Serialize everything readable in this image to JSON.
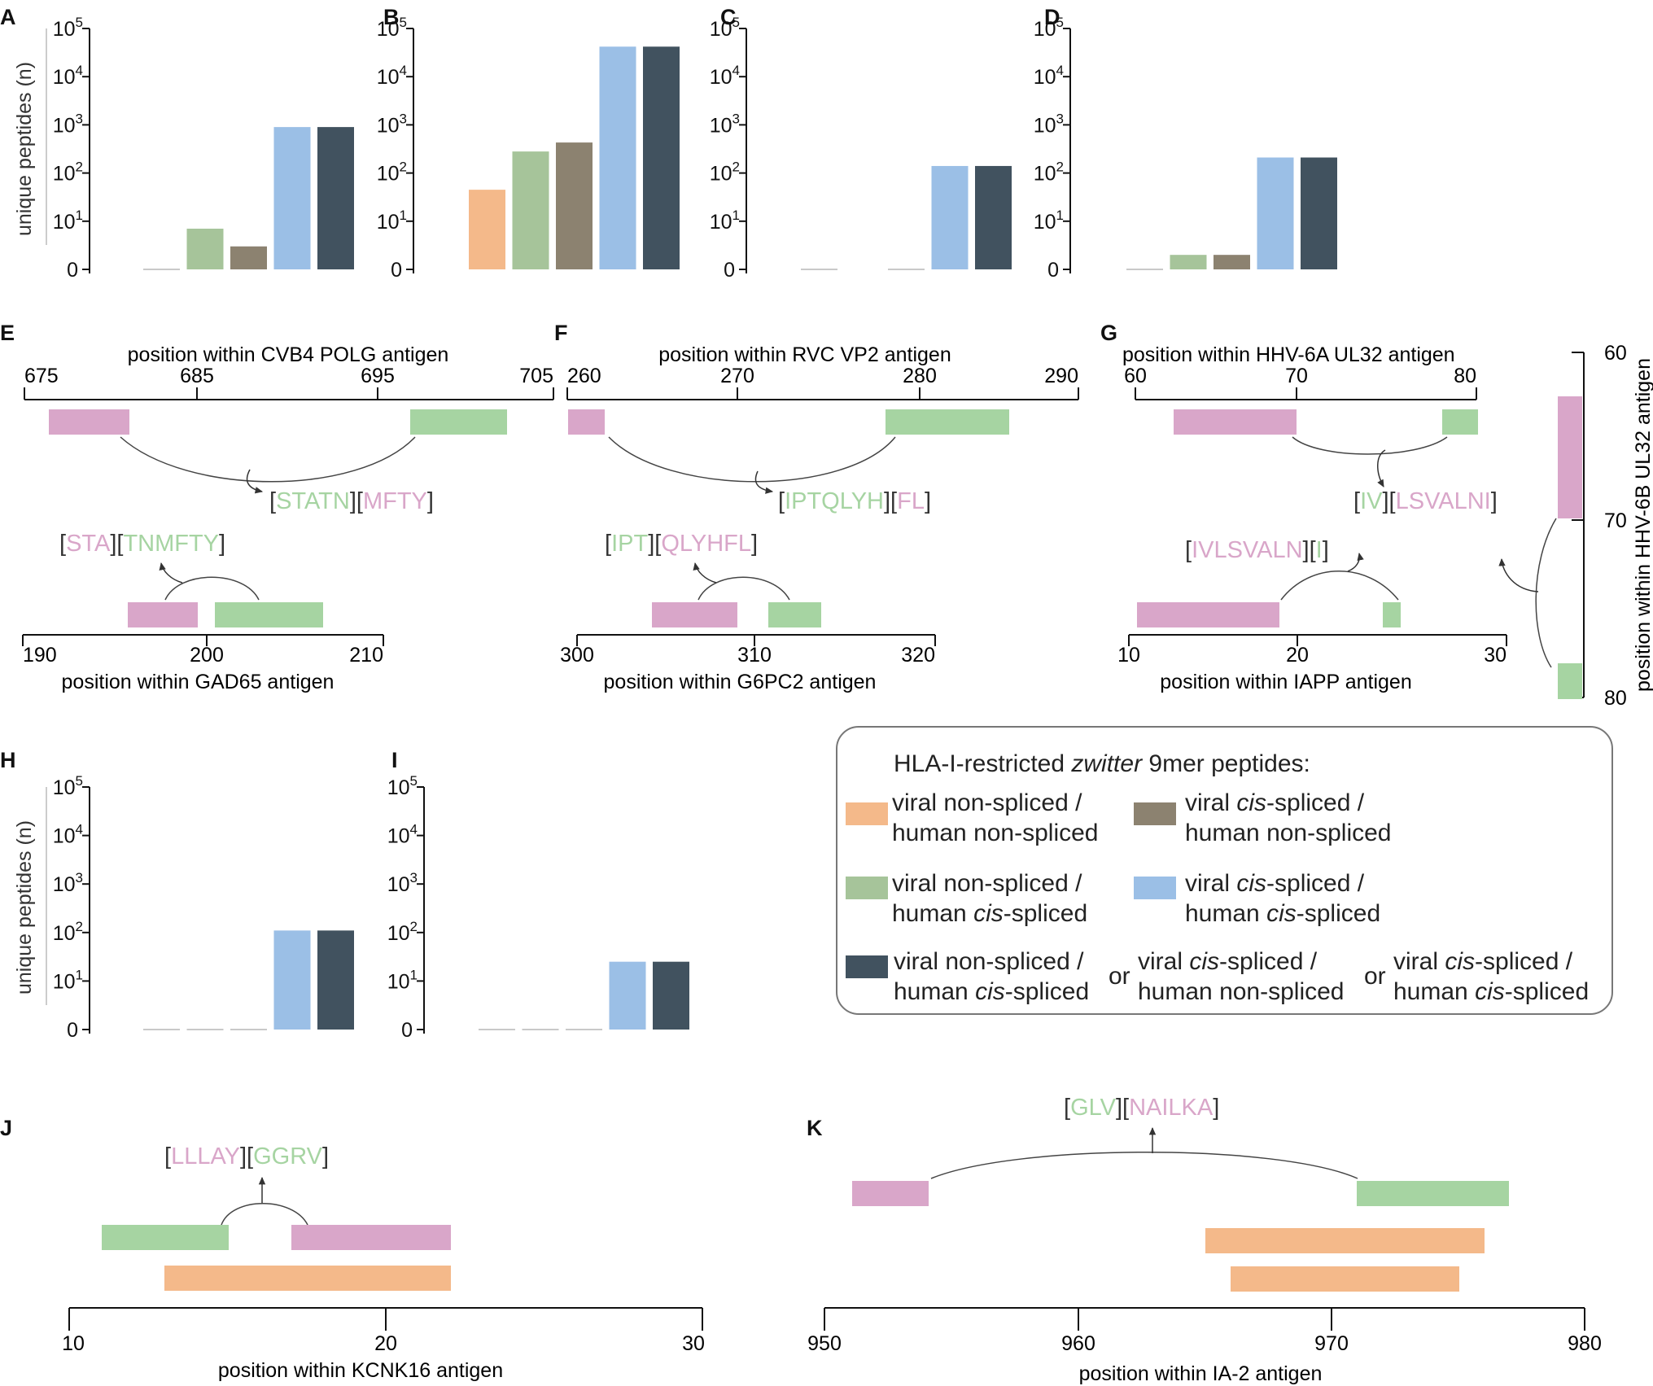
{
  "colors": {
    "viral_ns_human_ns": "#f4b98a",
    "viral_ns_human_cis": "#a6c49a",
    "viral_cis_human_ns": "#8c8270",
    "viral_cis_human_cis": "#9bbfe6",
    "any": "#41525f",
    "pink": "#d9a6c9",
    "green": "#a6d4a2",
    "orange": "#f4b98a"
  },
  "chart_data": [
    {
      "panel": "A",
      "type": "bar",
      "scale": "log",
      "ylabel": "unique peptides (n)",
      "ytick_labels": [
        "0",
        "10",
        "10",
        "10",
        "10",
        "10"
      ],
      "ytick_exps": [
        "",
        "1",
        "2",
        "3",
        "4",
        "5"
      ],
      "categories": [
        "viral non-spliced / human non-spliced",
        "viral non-spliced / human cis-spliced",
        "viral cis-spliced / human non-spliced",
        "viral cis-spliced / human cis-spliced",
        "any"
      ],
      "values": [
        0,
        7,
        3,
        900,
        900
      ]
    },
    {
      "panel": "B",
      "type": "bar",
      "scale": "log",
      "ylabel": "",
      "ytick_labels": [
        "0",
        "10",
        "10",
        "10",
        "10",
        "10"
      ],
      "ytick_exps": [
        "",
        "1",
        "2",
        "3",
        "4",
        "5"
      ],
      "categories": [
        "viral non-spliced / human non-spliced",
        "viral non-spliced / human cis-spliced",
        "viral cis-spliced / human non-spliced",
        "viral cis-spliced / human cis-spliced",
        "any"
      ],
      "values": [
        45,
        280,
        430,
        42000,
        42000
      ]
    },
    {
      "panel": "C",
      "type": "bar",
      "scale": "log",
      "ylabel": "",
      "ytick_labels": [
        "0",
        "10",
        "10",
        "10",
        "10",
        "10"
      ],
      "ytick_exps": [
        "",
        "1",
        "2",
        "3",
        "4",
        "5"
      ],
      "categories": [
        "viral non-spliced / human non-spliced",
        "viral non-spliced / human cis-spliced",
        "viral cis-spliced / human non-spliced",
        "viral cis-spliced / human cis-spliced",
        "any"
      ],
      "values": [
        0,
        1,
        0,
        140,
        140
      ]
    },
    {
      "panel": "D",
      "type": "bar",
      "scale": "log",
      "ylabel": "",
      "ytick_labels": [
        "0",
        "10",
        "10",
        "10",
        "10",
        "10"
      ],
      "ytick_exps": [
        "",
        "1",
        "2",
        "3",
        "4",
        "5"
      ],
      "categories": [
        "viral non-spliced / human non-spliced",
        "viral non-spliced / human cis-spliced",
        "viral cis-spliced / human non-spliced",
        "viral cis-spliced / human cis-spliced",
        "any"
      ],
      "values": [
        0,
        2,
        2,
        210,
        210
      ]
    },
    {
      "panel": "H",
      "type": "bar",
      "scale": "log",
      "ylabel": "unique peptides (n)",
      "ytick_labels": [
        "0",
        "10",
        "10",
        "10",
        "10",
        "10"
      ],
      "ytick_exps": [
        "",
        "1",
        "2",
        "3",
        "4",
        "5"
      ],
      "categories": [
        "viral non-spliced / human non-spliced",
        "viral non-spliced / human cis-spliced",
        "viral cis-spliced / human non-spliced",
        "viral cis-spliced / human cis-spliced",
        "any"
      ],
      "values": [
        0,
        0,
        0,
        110,
        110
      ]
    },
    {
      "panel": "I",
      "type": "bar",
      "scale": "log",
      "ylabel": "",
      "ytick_labels": [
        "0",
        "10",
        "10",
        "10",
        "10",
        "10"
      ],
      "ytick_exps": [
        "",
        "1",
        "2",
        "3",
        "4",
        "5"
      ],
      "categories": [
        "viral non-spliced / human non-spliced",
        "viral non-spliced / human cis-spliced",
        "viral cis-spliced / human non-spliced",
        "viral cis-spliced / human cis-spliced",
        "any"
      ],
      "values": [
        0,
        0,
        0,
        25,
        25
      ]
    }
  ],
  "panel_letters": [
    "A",
    "B",
    "C",
    "D",
    "E",
    "F",
    "G",
    "H",
    "I",
    "J",
    "K"
  ],
  "maps": {
    "E": {
      "top_title": "position within CVB4 POLG antigen",
      "top_ticks": [
        "675",
        "685",
        "695",
        "705"
      ],
      "bottom_title": "position within GAD65 antigen",
      "bottom_ticks": [
        "190",
        "200",
        "210"
      ],
      "pep_top": [
        "STATN",
        "MFTY"
      ],
      "pep_bottom": [
        "STA",
        "TNMFTY"
      ]
    },
    "F": {
      "top_title": "position within RVC VP2 antigen",
      "top_ticks": [
        "260",
        "270",
        "280",
        "290"
      ],
      "bottom_title": "position within G6PC2 antigen",
      "bottom_ticks": [
        "300",
        "310",
        "320"
      ],
      "pep_top": [
        "IPTQLYH",
        "FL"
      ],
      "pep_bottom": [
        "IPT",
        "QLYHFL"
      ]
    },
    "G": {
      "top_title": "position within HHV-6A UL32 antigen",
      "top_ticks": [
        "60",
        "70",
        "80"
      ],
      "bottom_title": "position within IAPP antigen",
      "bottom_ticks": [
        "10",
        "20",
        "30"
      ],
      "side_title": "position within HHV-6B UL32 antigen",
      "side_ticks": [
        "60",
        "70",
        "80"
      ],
      "pep_top": [
        "IV",
        "LSVALNI"
      ],
      "pep_bottom": [
        "IVLSVALN",
        "I"
      ]
    },
    "J": {
      "bottom_title": "position within KCNK16 antigen",
      "bottom_ticks": [
        "10",
        "20",
        "30"
      ],
      "pep": [
        "LLLAY",
        "GGRV"
      ]
    },
    "K": {
      "bottom_title": "position within IA-2 antigen",
      "bottom_ticks": [
        "950",
        "960",
        "970",
        "980"
      ],
      "pep": [
        "GLV",
        "NAILKA"
      ]
    }
  },
  "legend": {
    "title_pre": "HLA-I-restricted",
    "title_italic": "zwitter",
    "title_post": "9mer peptides:",
    "item1_l1": "viral non-spliced /",
    "item1_l2": "human non-spliced",
    "item2_l1a": "viral",
    "item2_l1b": "cis",
    "item2_l1c": "-spliced /",
    "item2_l2": "human non-spliced",
    "item3_l1": "viral non-spliced /",
    "item3_l2a": "human",
    "item3_l2b": "cis",
    "item3_l2c": "-spliced",
    "item4_l1a": "viral",
    "item4_l1b": "cis",
    "item4_l1c": "-spliced /",
    "item4_l2a": "human",
    "item4_l2b": "cis",
    "item4_l2c": "-spliced",
    "item5a_l1": "viral non-spliced /",
    "item5a_l2a": "human",
    "item5a_l2b": "cis",
    "item5a_l2c": "-spliced",
    "or": "or",
    "item5b_l1a": "viral",
    "item5b_l1b": "cis",
    "item5b_l1c": "-spliced /",
    "item5b_l2": "human non-spliced",
    "item5c_l1a": "viral",
    "item5c_l1b": "cis",
    "item5c_l1c": "-spliced /",
    "item5c_l2a": "human",
    "item5c_l2b": "cis",
    "item5c_l2c": "-spliced"
  }
}
